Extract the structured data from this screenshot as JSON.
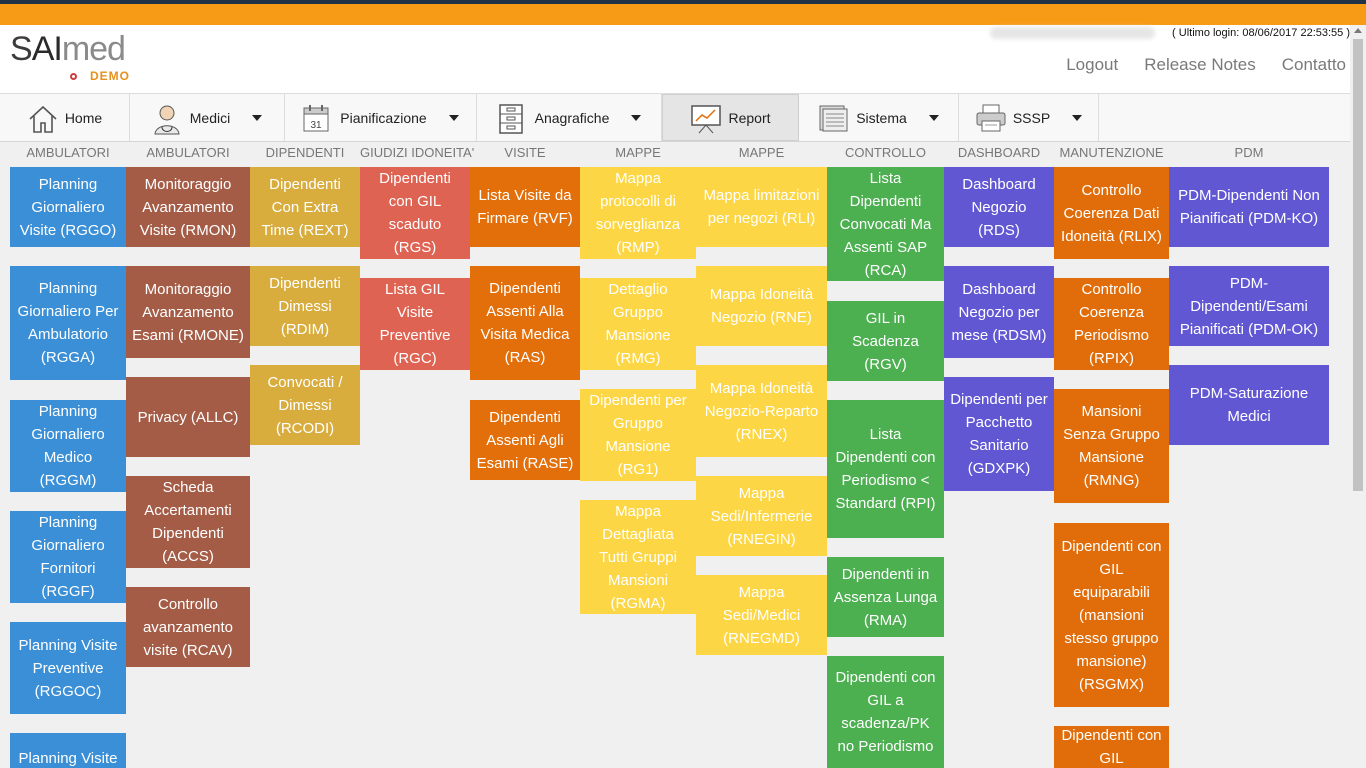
{
  "header": {
    "logo": {
      "prefix": "S",
      "ai": "AI",
      "suffix": "med",
      "sub": "DEMO"
    },
    "last_login": "( Ultimo login: 08/06/2017 22:53:55 )",
    "links": [
      "Logout",
      "Release Notes",
      "Contatto"
    ]
  },
  "nav": [
    {
      "label": "Home",
      "icon": "home-icon",
      "dropdown": false
    },
    {
      "label": "Medici",
      "icon": "doctor-icon",
      "dropdown": true
    },
    {
      "label": "Pianificazione",
      "icon": "calendar-icon",
      "dropdown": true
    },
    {
      "label": "Anagrafiche",
      "icon": "file-cabinet-icon",
      "dropdown": true
    },
    {
      "label": "Report",
      "icon": "presentation-board-icon",
      "dropdown": false,
      "active": true
    },
    {
      "label": "Sistema",
      "icon": "server-icon",
      "dropdown": true
    },
    {
      "label": "SSSP",
      "icon": "printer-icon",
      "dropdown": true
    }
  ],
  "calendar_day": "31",
  "colors": {
    "blue": "#3a8fd6",
    "brown": "#a45c46",
    "mustard": "#d8ad3e",
    "red": "#df6352",
    "orange": "#e36f0a",
    "yellow": "#fdd645",
    "green": "#4caf50",
    "purple": "#6157d3",
    "darkorange": "#e06d0a"
  },
  "columns": [
    {
      "title": "AMBULATORI",
      "tiles": [
        "Planning Giornaliero Visite (RGGO)",
        "Planning Giornaliero Per Ambulatorio (RGGA)",
        "Planning Giornaliero Medico (RGGM)",
        "Planning Giornaliero Fornitori (RGGF)",
        "Planning Visite Preventive (RGGOC)",
        "Planning Visite"
      ]
    },
    {
      "title": "AMBULATORI",
      "tiles": [
        "Monitoraggio Avanzamento Visite (RMON)",
        "Monitoraggio Avanzamento Esami (RMONE)",
        "Privacy (ALLC)",
        "Scheda Accertamenti Dipendenti (ACCS)",
        "Controllo avanzamento visite (RCAV)"
      ]
    },
    {
      "title": "DIPENDENTI",
      "tiles": [
        "Dipendenti Con Extra Time (REXT)",
        "Dipendenti Dimessi (RDIM)",
        "Convocati / Dimessi (RCODI)"
      ]
    },
    {
      "title": "GIUDIZI IDONEITA'",
      "tiles": [
        "Dipendenti con GIL scaduto (RGS)",
        "Lista GIL Visite Preventive (RGC)"
      ]
    },
    {
      "title": "VISITE",
      "tiles": [
        "Lista Visite da Firmare (RVF)",
        "Dipendenti Assenti Alla Visita Medica (RAS)",
        "Dipendenti Assenti Agli Esami (RASE)"
      ]
    },
    {
      "title": "MAPPE",
      "tiles": [
        "Mappa protocolli di sorveglianza (RMP)",
        "Dettaglio Gruppo Mansione (RMG)",
        "Dipendenti per Gruppo Mansione (RG1)",
        "Mappa Dettagliata Tutti Gruppi Mansioni (RGMA)"
      ]
    },
    {
      "title": "MAPPE",
      "tiles": [
        "Mappa limitazioni per negozi (RLI)",
        "Mappa Idoneità Negozio (RNE)",
        "Mappa Idoneità Negozio-Reparto (RNEX)",
        "Mappa Sedi/Infermerie (RNEGIN)",
        "Mappa Sedi/Medici (RNEGMD)"
      ]
    },
    {
      "title": "CONTROLLO",
      "tiles": [
        "Lista Dipendenti Convocati Ma Assenti SAP (RCA)",
        "GIL in Scadenza (RGV)",
        "Lista Dipendenti con Periodismo < Standard (RPI)",
        "Dipendenti in Assenza Lunga (RMA)",
        "Dipendenti con GIL a scadenza/PK no Periodismo"
      ]
    },
    {
      "title": "DASHBOARD",
      "tiles": [
        "Dashboard Negozio (RDS)",
        "Dashboard Negozio per mese (RDSM)",
        "Dipendenti per Pacchetto Sanitario (GDXPK)"
      ]
    },
    {
      "title": "MANUTENZIONE",
      "tiles": [
        "Controllo Coerenza Dati Idoneità (RLIX)",
        "Controllo Coerenza Periodismo (RPIX)",
        "Mansioni Senza Gruppo Mansione (RMNG)",
        "Dipendenti con GIL equiparabili (mansioni stesso gruppo mansione) (RSGMX)",
        "Dipendenti con GIL"
      ]
    },
    {
      "title": "PDM",
      "tiles": [
        "PDM-Dipendenti Non Pianificati (PDM-KO)",
        "PDM-Dipendenti/Esami Pianificati (PDM-OK)",
        "PDM-Saturazione Medici"
      ]
    }
  ]
}
